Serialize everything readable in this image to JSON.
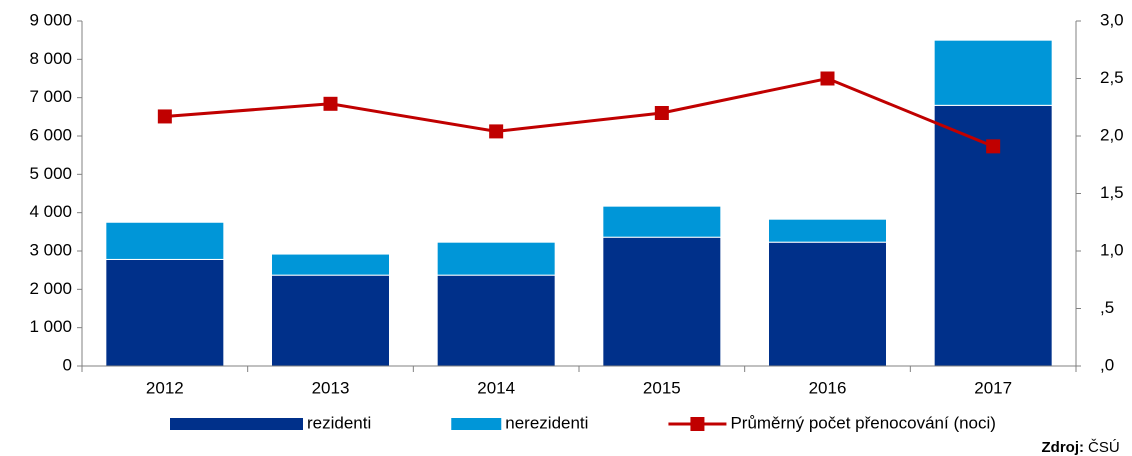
{
  "chart_data": {
    "type": "bar",
    "categories": [
      "2012",
      "2013",
      "2014",
      "2015",
      "2016",
      "2017"
    ],
    "series": [
      {
        "name": "rezidenti",
        "color": "#00308a",
        "values": [
          2780,
          2370,
          2370,
          3360,
          3230,
          6800
        ]
      },
      {
        "name": "nerezidenti",
        "color": "#0096d8",
        "values": [
          970,
          550,
          860,
          810,
          600,
          1700
        ]
      },
      {
        "name": "Průměrný počet přenocování (noci)",
        "color": "#c00000",
        "type": "line",
        "axis": "y2",
        "values": [
          2.17,
          2.28,
          2.04,
          2.2,
          2.5,
          1.91
        ]
      }
    ],
    "stacked": true,
    "ylim": [
      0,
      9000
    ],
    "yticks": [
      0,
      {
        "value": 1000,
        "label": "1 000"
      },
      {
        "value": 2000,
        "label": "2 000"
      },
      {
        "value": 3000,
        "label": "3 000"
      },
      {
        "value": 4000,
        "label": "4 000"
      },
      {
        "value": 5000,
        "label": "5 000"
      },
      {
        "value": 6000,
        "label": "6 000"
      },
      {
        "value": 7000,
        "label": "7 000"
      },
      {
        "value": 8000,
        "label": "8 000"
      },
      {
        "value": 9000,
        "label": "9 000"
      }
    ],
    "y2lim": [
      0,
      3
    ],
    "y2ticks": [
      {
        "value": 0,
        "label": ",0"
      },
      {
        "value": 0.5,
        "label": ",5"
      },
      {
        "value": 1,
        "label": "1,0"
      },
      {
        "value": 1.5,
        "label": "1,5"
      },
      {
        "value": 2,
        "label": "2,0"
      },
      {
        "value": 2.5,
        "label": "2,5"
      },
      {
        "value": 3,
        "label": "3,0"
      }
    ],
    "legend": "bottom",
    "source_label": "Zdroj:",
    "source": "ČSÚ"
  }
}
